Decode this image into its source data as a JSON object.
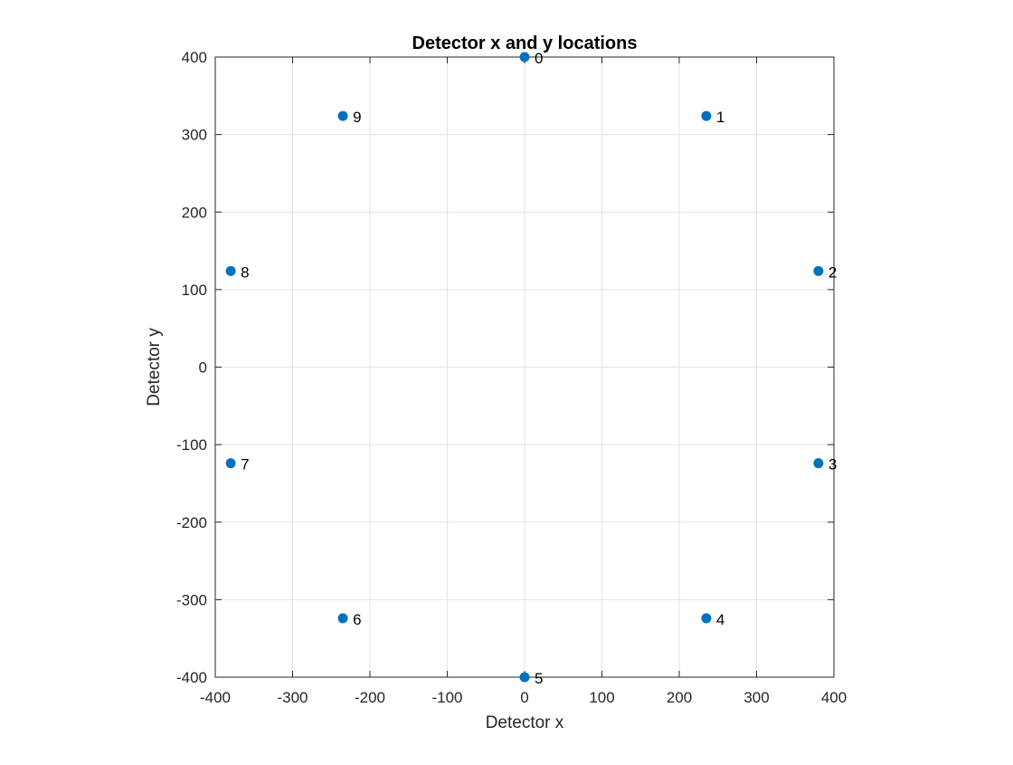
{
  "chart_data": {
    "type": "scatter",
    "title": "Detector x and y locations",
    "xlabel": "Detector x",
    "ylabel": "Detector y",
    "xlim": [
      -400,
      400
    ],
    "ylim": [
      -400,
      400
    ],
    "xticks": [
      -400,
      -300,
      -200,
      -100,
      0,
      100,
      200,
      300,
      400
    ],
    "yticks": [
      -400,
      -300,
      -200,
      -100,
      0,
      100,
      200,
      300,
      400
    ],
    "xtick_labels": [
      "-400",
      "-300",
      "-200",
      "-100",
      "0",
      "100",
      "200",
      "300",
      "400"
    ],
    "ytick_labels": [
      "-400",
      "-300",
      "-200",
      "-100",
      "0",
      "100",
      "200",
      "300",
      "400"
    ],
    "grid": true,
    "marker_color": "#0072BD",
    "points": [
      {
        "label": "0",
        "x": 0,
        "y": 400
      },
      {
        "label": "1",
        "x": 235,
        "y": 324
      },
      {
        "label": "2",
        "x": 380,
        "y": 124
      },
      {
        "label": "3",
        "x": 380,
        "y": -124
      },
      {
        "label": "4",
        "x": 235,
        "y": -324
      },
      {
        "label": "5",
        "x": 0,
        "y": -400
      },
      {
        "label": "6",
        "x": -235,
        "y": -324
      },
      {
        "label": "7",
        "x": -380,
        "y": -124
      },
      {
        "label": "8",
        "x": -380,
        "y": 124
      },
      {
        "label": "9",
        "x": -235,
        "y": 324
      }
    ]
  }
}
